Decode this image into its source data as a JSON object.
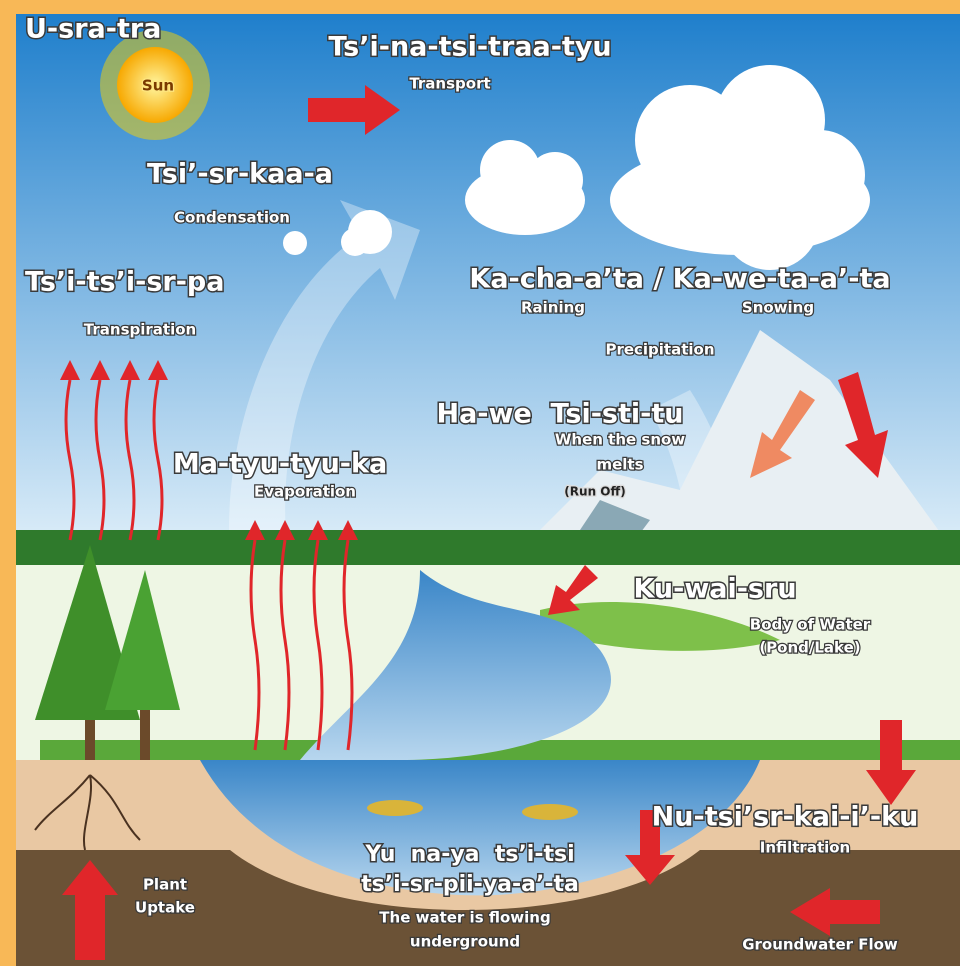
{
  "sun": {
    "name": "U-sra-tra",
    "label": "Sun"
  },
  "transport": {
    "name": "Ts’i-na-tsi-traa-tyu",
    "english": "Transport"
  },
  "condensation": {
    "name": "Tsi’-sr-kaa-a",
    "english": "Condensation"
  },
  "transpiration": {
    "name": "Ts’i-ts’i-sr-pa",
    "english": "Transpiration"
  },
  "precipitation": {
    "name": "Ka-cha-a’ta / Ka-we-ta-a’-ta",
    "raining": "Raining",
    "snowing": "Snowing",
    "english": "Precipitation"
  },
  "runoff": {
    "name": "Ha-we  Tsi-sti-tu",
    "english": [
      "When the snow",
      "melts"
    ],
    "note": "(Run Off)"
  },
  "evaporation": {
    "name": "Ma-tyu-tyu-ka",
    "english": "Evaporation"
  },
  "body_of_water": {
    "name": "Ku-wai-sru",
    "english": [
      "Body of Water",
      "(Pond/Lake)"
    ]
  },
  "infiltration": {
    "name": "Nu-tsi’sr-kai-i’-ku",
    "english": "Infiltration"
  },
  "underground": {
    "name": [
      "Yu  na-ya  ts’i-tsi",
      "ts’i-sr-pii-ya-a’-ta"
    ],
    "english": [
      "The water is flowing",
      "underground"
    ]
  },
  "plant_uptake": {
    "english": [
      "Plant",
      "Uptake"
    ]
  },
  "groundwater": {
    "english": "Groundwater Flow"
  }
}
